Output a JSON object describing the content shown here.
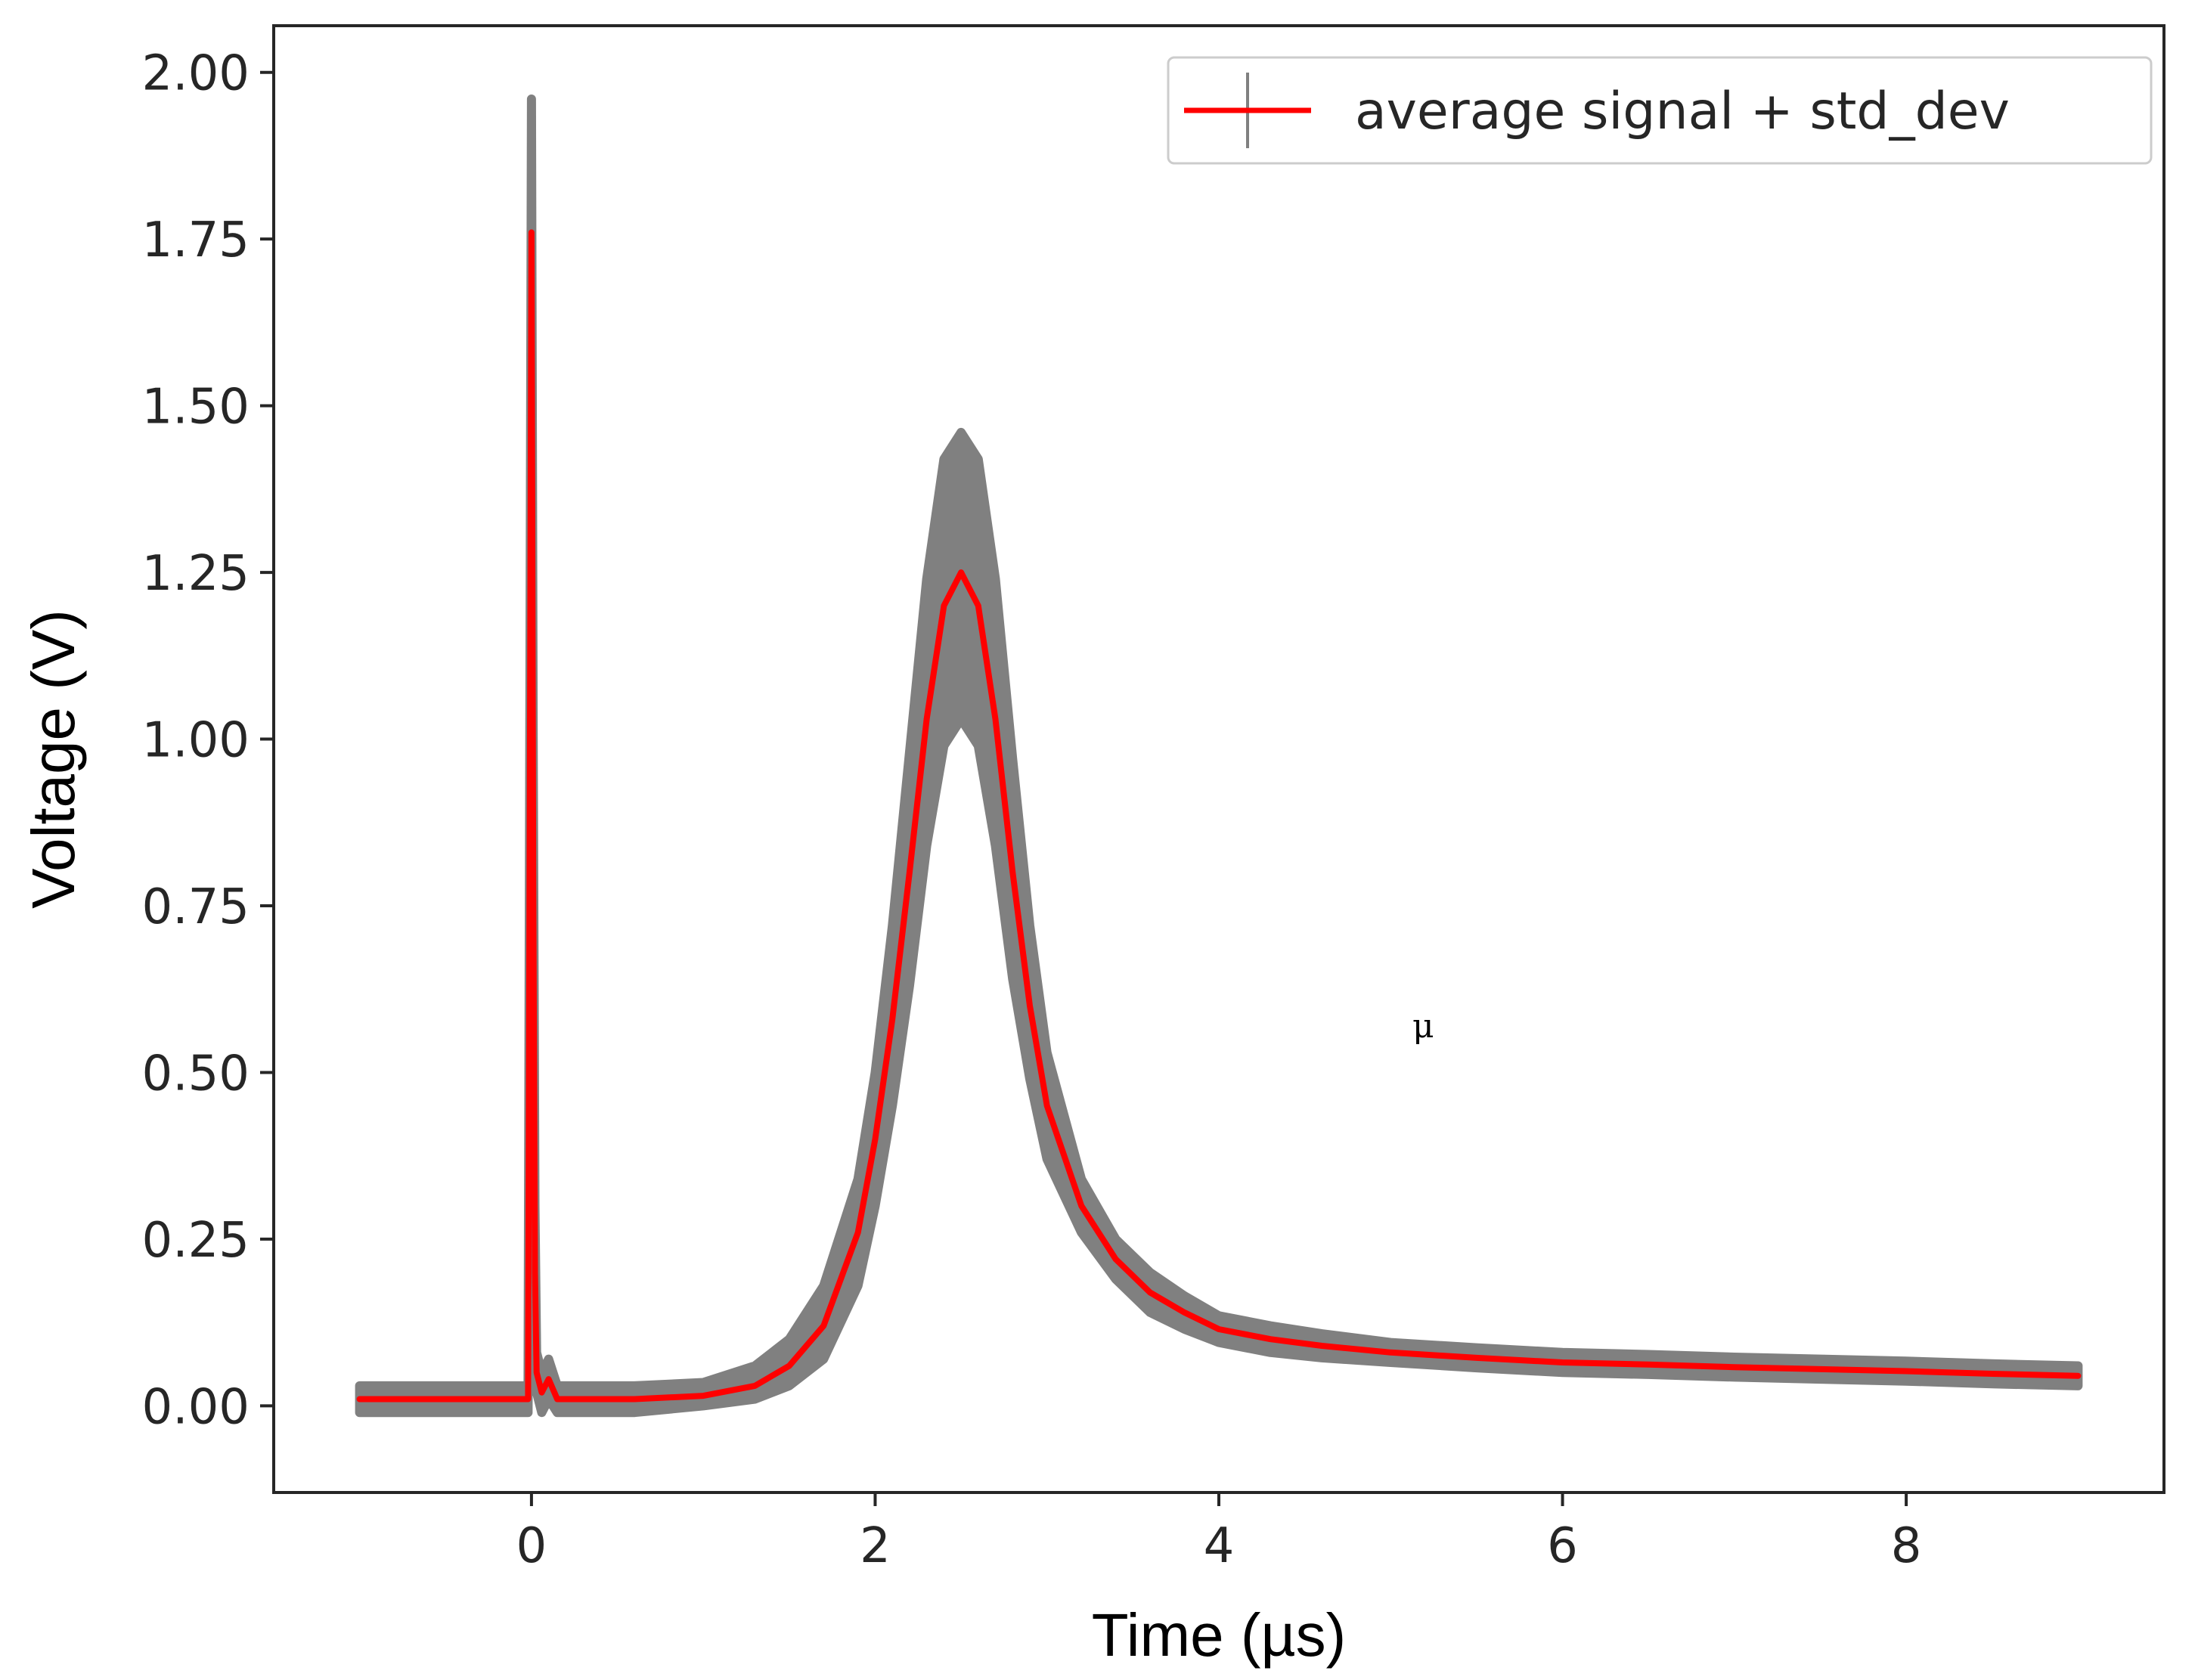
{
  "chart_data": {
    "type": "line",
    "title": "",
    "xlabel": "Time (µs)",
    "ylabel": "Voltage (V)",
    "xlim": [
      -1.5,
      9.5
    ],
    "ylim": [
      -0.13,
      2.07
    ],
    "xticks": [
      0,
      2,
      4,
      6,
      8
    ],
    "xtick_labels": [
      "0",
      "2",
      "4",
      "6",
      "8"
    ],
    "yticks": [
      0.0,
      0.25,
      0.5,
      0.75,
      1.0,
      1.25,
      1.5,
      1.75,
      2.0
    ],
    "ytick_labels": [
      "0.00",
      "0.25",
      "0.50",
      "0.75",
      "1.00",
      "1.25",
      "1.50",
      "1.75",
      "2.00"
    ],
    "legend": {
      "label": "average signal + std_dev",
      "position": "top-right"
    },
    "annotation": "μ",
    "colors": {
      "mean_line": "#ff0000",
      "std_band": "#808080",
      "axes": "#262626"
    },
    "series": [
      {
        "name": "average signal",
        "x": [
          -1.0,
          -0.5,
          -0.02,
          0.0,
          0.01,
          0.02,
          0.03,
          0.06,
          0.1,
          0.15,
          0.3,
          0.6,
          1.0,
          1.3,
          1.5,
          1.7,
          1.9,
          2.0,
          2.1,
          2.2,
          2.3,
          2.4,
          2.5,
          2.6,
          2.7,
          2.8,
          2.9,
          3.0,
          3.2,
          3.4,
          3.6,
          3.8,
          4.0,
          4.3,
          4.6,
          5.0,
          5.5,
          6.0,
          6.5,
          7.0,
          7.5,
          8.0,
          8.5,
          9.0
        ],
        "y": [
          0.01,
          0.01,
          0.01,
          1.76,
          0.8,
          0.2,
          0.05,
          0.02,
          0.04,
          0.01,
          0.01,
          0.01,
          0.015,
          0.03,
          0.06,
          0.12,
          0.26,
          0.4,
          0.58,
          0.8,
          1.03,
          1.2,
          1.25,
          1.2,
          1.03,
          0.8,
          0.6,
          0.45,
          0.3,
          0.22,
          0.17,
          0.14,
          0.115,
          0.1,
          0.09,
          0.08,
          0.072,
          0.065,
          0.062,
          0.058,
          0.055,
          0.052,
          0.048,
          0.045
        ]
      },
      {
        "name": "std_dev upper",
        "x": [
          -1.0,
          -0.5,
          -0.02,
          0.0,
          0.01,
          0.02,
          0.03,
          0.06,
          0.1,
          0.15,
          0.3,
          0.6,
          1.0,
          1.3,
          1.5,
          1.7,
          1.9,
          2.0,
          2.1,
          2.2,
          2.3,
          2.4,
          2.5,
          2.6,
          2.7,
          2.8,
          2.9,
          3.0,
          3.2,
          3.4,
          3.6,
          3.8,
          4.0,
          4.3,
          4.6,
          5.0,
          5.5,
          6.0,
          6.5,
          7.0,
          7.5,
          8.0,
          8.5,
          9.0
        ],
        "y": [
          0.03,
          0.03,
          0.03,
          1.96,
          1.0,
          0.3,
          0.08,
          0.05,
          0.07,
          0.03,
          0.03,
          0.03,
          0.035,
          0.06,
          0.1,
          0.18,
          0.34,
          0.5,
          0.72,
          0.98,
          1.24,
          1.42,
          1.46,
          1.42,
          1.24,
          0.97,
          0.72,
          0.53,
          0.34,
          0.25,
          0.2,
          0.165,
          0.135,
          0.12,
          0.108,
          0.095,
          0.087,
          0.08,
          0.077,
          0.073,
          0.07,
          0.067,
          0.063,
          0.06
        ]
      },
      {
        "name": "std_dev lower",
        "x": [
          -1.0,
          -0.5,
          -0.02,
          0.0,
          0.01,
          0.02,
          0.03,
          0.06,
          0.1,
          0.15,
          0.3,
          0.6,
          1.0,
          1.3,
          1.5,
          1.7,
          1.9,
          2.0,
          2.1,
          2.2,
          2.3,
          2.4,
          2.5,
          2.6,
          2.7,
          2.8,
          2.9,
          3.0,
          3.2,
          3.4,
          3.6,
          3.8,
          4.0,
          4.3,
          4.6,
          5.0,
          5.5,
          6.0,
          6.5,
          7.0,
          7.5,
          8.0,
          8.5,
          9.0
        ],
        "y": [
          -0.01,
          -0.01,
          -0.01,
          1.56,
          0.6,
          0.1,
          0.02,
          -0.01,
          0.01,
          -0.01,
          -0.01,
          -0.01,
          0.0,
          0.01,
          0.03,
          0.07,
          0.18,
          0.3,
          0.45,
          0.63,
          0.84,
          0.99,
          1.03,
          0.99,
          0.84,
          0.64,
          0.49,
          0.37,
          0.26,
          0.19,
          0.14,
          0.115,
          0.095,
          0.08,
          0.072,
          0.065,
          0.057,
          0.05,
          0.047,
          0.043,
          0.04,
          0.037,
          0.033,
          0.03
        ]
      }
    ]
  }
}
